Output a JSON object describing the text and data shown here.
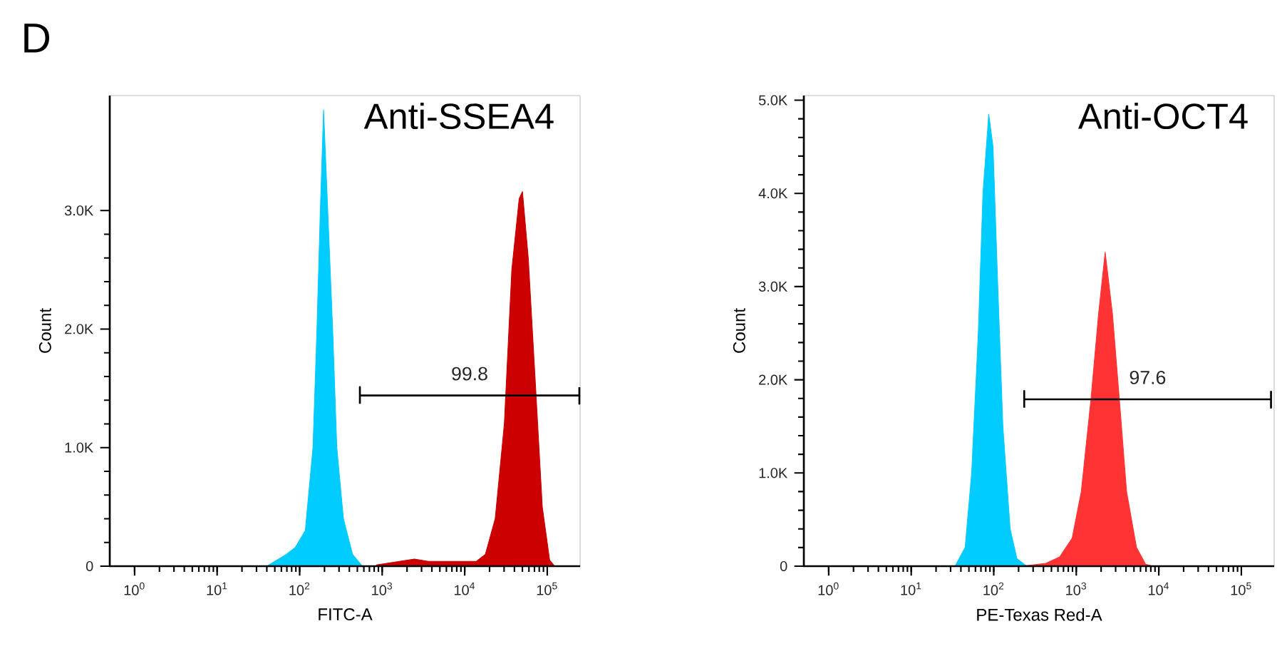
{
  "chart_data": [
    {
      "type": "area",
      "title": "Anti-SSEA4",
      "xlabel": "FITC-A",
      "ylabel": "Count",
      "log": "x",
      "xlim": [
        0.5,
        250000
      ],
      "ylim": [
        0,
        3970
      ],
      "xticks": [
        {
          "value": 1,
          "label": "10$^{0}$"
        },
        {
          "value": 10,
          "label": "10$^{1}$"
        },
        {
          "value": 100,
          "label": "10$^{2}$"
        },
        {
          "value": 1000,
          "label": "10$^{3}$"
        },
        {
          "value": 10000,
          "label": "10$^{4}$"
        },
        {
          "value": 100000,
          "label": "10$^{5}$"
        }
      ],
      "yticks": [
        0,
        {
          "value": 1000,
          "label": "1.0K"
        },
        {
          "value": 2000,
          "label": "2.0K"
        },
        {
          "value": 3000,
          "label": "3.0K"
        }
      ],
      "series": [
        {
          "color": "#00ccff",
          "x": [
            0.5,
            40,
            69,
            89,
            117,
            145,
            162,
            178,
            195,
            219,
            251,
            282,
            339,
            437,
            575,
            250000
          ],
          "values": [
            0,
            0,
            100,
            160,
            300,
            1000,
            2000,
            3000,
            3850,
            3000,
            2000,
            1000,
            400,
            100,
            0,
            0
          ]
        },
        {
          "color": "#cc0000",
          "x": [
            851,
            2455,
            3631,
            13800,
            17800,
            23400,
            30200,
            37200,
            45700,
            50100,
            58900,
            72400,
            87100,
            107000,
            123000
          ],
          "values": [
            10,
            60,
            40,
            40,
            100,
            400,
            1200,
            2500,
            3100,
            3160,
            2600,
            1500,
            500,
            50,
            0
          ]
        },
        {
          "type": "line",
          "name": "99.8",
          "color": "#000000",
          "x": [
            537,
            537,
            537,
            245000,
            245000,
            245000
          ],
          "values": [
            1370,
            1510,
            1440,
            1440,
            1370,
            1510
          ]
        }
      ],
      "annotations": [
        "D"
      ]
    },
    {
      "type": "area",
      "title": "Anti-OCT4",
      "xlabel": "PE-Texas Red-A",
      "ylabel": "Count",
      "log": "x",
      "xlim": [
        0.5,
        250000
      ],
      "ylim": [
        0,
        5050
      ],
      "xticks": [
        {
          "value": 1,
          "label": "10$^{0}$"
        },
        {
          "value": 10,
          "label": "10$^{1}$"
        },
        {
          "value": 100,
          "label": "10$^{2}$"
        },
        {
          "value": 1000,
          "label": "10$^{3}$"
        },
        {
          "value": 10000,
          "label": "10$^{4}$"
        },
        {
          "value": 100000,
          "label": "10$^{5}$"
        }
      ],
      "yticks": [
        0,
        {
          "value": 1000,
          "label": "1.0K"
        },
        {
          "value": 2000,
          "label": "2.0K"
        },
        {
          "value": 3000,
          "label": "3.0K"
        },
        {
          "value": 4000,
          "label": "4.0K"
        },
        {
          "value": 5000,
          "label": "5.0K"
        }
      ],
      "series": [
        {
          "color": "#00ccff",
          "x": [
            0.5,
            34,
            45,
            54,
            65,
            74,
            87,
            98,
            112,
            129,
            158,
            191,
            251,
            250000
          ],
          "values": [
            0,
            0,
            200,
            1000,
            2500,
            4000,
            4850,
            4500,
            3000,
            1500,
            400,
            80,
            0,
            0
          ]
        },
        {
          "color": "#ff3333",
          "x": [
            219,
            427,
            631,
            891,
            1150,
            1510,
            1860,
            2240,
            2750,
            3390,
            4070,
            5370,
            6920,
            8510
          ],
          "values": [
            0,
            30,
            100,
            300,
            800,
            1800,
            2700,
            3370,
            2700,
            1700,
            800,
            200,
            20,
            0
          ]
        },
        {
          "type": "line",
          "name": "97.6",
          "color": "#000000",
          "x": [
            234,
            234,
            234,
            229000,
            229000,
            229000
          ],
          "values": [
            1700,
            1880,
            1790,
            1790,
            1700,
            1880
          ]
        }
      ]
    }
  ]
}
